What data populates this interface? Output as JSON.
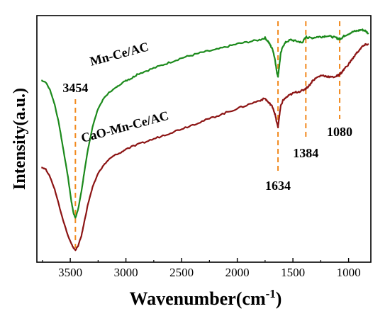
{
  "chart_data": {
    "type": "line",
    "xlabel": "Wavenumber(cm",
    "xlabel_sup": "-1",
    "xlabel_close": ")",
    "ylabel": "Intensity(a.u.)",
    "xlim": [
      3800,
      800
    ],
    "x_reversed": true,
    "y_ticks_shown": false,
    "xticks": [
      3500,
      3000,
      2500,
      2000,
      1500,
      1000
    ],
    "xtick_labels": [
      "3500",
      "3000",
      "2500",
      "2000",
      "1500",
      "1000"
    ],
    "annotations": [
      {
        "label": "3454",
        "x": 3454
      },
      {
        "label": "1634",
        "x": 1634
      },
      {
        "label": "1384",
        "x": 1384
      },
      {
        "label": "1080",
        "x": 1080
      }
    ],
    "annotation_color": "#f28a1e",
    "series": [
      {
        "name": "Mn-Ce/AC",
        "color": "#1c8a1c",
        "points": [
          [
            3760,
            80
          ],
          [
            3720,
            79
          ],
          [
            3680,
            75
          ],
          [
            3640,
            68
          ],
          [
            3600,
            58
          ],
          [
            3560,
            45
          ],
          [
            3520,
            32
          ],
          [
            3490,
            20
          ],
          [
            3470,
            14
          ],
          [
            3454,
            12
          ],
          [
            3430,
            16
          ],
          [
            3400,
            25
          ],
          [
            3370,
            36
          ],
          [
            3340,
            46
          ],
          [
            3300,
            57
          ],
          [
            3250,
            66
          ],
          [
            3200,
            71
          ],
          [
            3150,
            74
          ],
          [
            3100,
            76
          ],
          [
            3050,
            78
          ],
          [
            3000,
            80
          ],
          [
            2950,
            81
          ],
          [
            2900,
            83
          ],
          [
            2800,
            85
          ],
          [
            2700,
            87
          ],
          [
            2600,
            89
          ],
          [
            2500,
            91
          ],
          [
            2400,
            92.5
          ],
          [
            2300,
            94
          ],
          [
            2200,
            95
          ],
          [
            2100,
            96.5
          ],
          [
            2000,
            98
          ],
          [
            1900,
            99
          ],
          [
            1800,
            100
          ],
          [
            1750,
            101
          ],
          [
            1720,
            99
          ],
          [
            1700,
            97
          ],
          [
            1680,
            95
          ],
          [
            1660,
            90
          ],
          [
            1645,
            84
          ],
          [
            1634,
            82
          ],
          [
            1625,
            86
          ],
          [
            1610,
            93
          ],
          [
            1590,
            97
          ],
          [
            1560,
            99
          ],
          [
            1520,
            100
          ],
          [
            1480,
            99.5
          ],
          [
            1440,
            99
          ],
          [
            1420,
            98.5
          ],
          [
            1400,
            100
          ],
          [
            1380,
            101.5
          ],
          [
            1360,
            101
          ],
          [
            1320,
            101
          ],
          [
            1280,
            101.5
          ],
          [
            1240,
            101.5
          ],
          [
            1200,
            102
          ],
          [
            1150,
            101.5
          ],
          [
            1110,
            101
          ],
          [
            1090,
            100.5
          ],
          [
            1080,
            100.5
          ],
          [
            1060,
            101
          ],
          [
            1040,
            102
          ],
          [
            1000,
            103
          ],
          [
            960,
            104
          ],
          [
            920,
            104.5
          ],
          [
            880,
            105
          ],
          [
            850,
            104.5
          ],
          [
            820,
            103
          ]
        ],
        "label_x": 3050,
        "label_y": 91
      },
      {
        "name": "CaO-Mn-Ce/AC",
        "color": "#8c1414",
        "points": [
          [
            3760,
            37
          ],
          [
            3720,
            36
          ],
          [
            3680,
            32
          ],
          [
            3640,
            26
          ],
          [
            3600,
            18
          ],
          [
            3560,
            10
          ],
          [
            3520,
            3
          ],
          [
            3490,
            -1
          ],
          [
            3470,
            -3
          ],
          [
            3454,
            -4
          ],
          [
            3430,
            -2
          ],
          [
            3400,
            3
          ],
          [
            3370,
            11
          ],
          [
            3340,
            19
          ],
          [
            3300,
            27
          ],
          [
            3250,
            34
          ],
          [
            3200,
            38
          ],
          [
            3150,
            41
          ],
          [
            3100,
            43
          ],
          [
            3050,
            44
          ],
          [
            3000,
            46
          ],
          [
            2900,
            48
          ],
          [
            2800,
            50
          ],
          [
            2700,
            52
          ],
          [
            2600,
            54
          ],
          [
            2500,
            56
          ],
          [
            2400,
            58
          ],
          [
            2300,
            60
          ],
          [
            2200,
            62
          ],
          [
            2100,
            64
          ],
          [
            2000,
            66
          ],
          [
            1900,
            68
          ],
          [
            1800,
            70
          ],
          [
            1750,
            71
          ],
          [
            1720,
            69
          ],
          [
            1700,
            68
          ],
          [
            1680,
            66.5
          ],
          [
            1660,
            63
          ],
          [
            1645,
            59
          ],
          [
            1634,
            57
          ],
          [
            1625,
            61
          ],
          [
            1610,
            67
          ],
          [
            1590,
            70
          ],
          [
            1560,
            71.5
          ],
          [
            1520,
            73
          ],
          [
            1480,
            74
          ],
          [
            1440,
            74.5
          ],
          [
            1410,
            75
          ],
          [
            1384,
            76
          ],
          [
            1360,
            77
          ],
          [
            1320,
            80
          ],
          [
            1280,
            81.5
          ],
          [
            1240,
            82.5
          ],
          [
            1200,
            82
          ],
          [
            1150,
            81.5
          ],
          [
            1110,
            82
          ],
          [
            1090,
            82.5
          ],
          [
            1080,
            83
          ],
          [
            1060,
            84
          ],
          [
            1040,
            85.5
          ],
          [
            1000,
            88
          ],
          [
            960,
            91
          ],
          [
            920,
            94
          ],
          [
            880,
            96.5
          ],
          [
            850,
            97.5
          ],
          [
            820,
            98
          ]
        ],
        "label_x": 3000,
        "label_y": 55
      }
    ]
  }
}
